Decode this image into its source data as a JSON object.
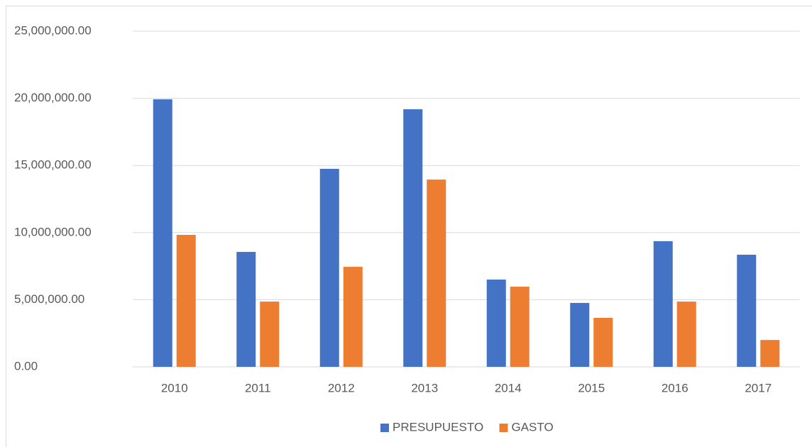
{
  "chart_data": {
    "type": "bar",
    "categories": [
      "2010",
      "2011",
      "2012",
      "2013",
      "2014",
      "2015",
      "2016",
      "2017"
    ],
    "series": [
      {
        "name": "PRESUPUESTO",
        "color": "#4472c4",
        "values": [
          19930000,
          8560000,
          14750000,
          19190000,
          6500000,
          4760000,
          9360000,
          8350000
        ]
      },
      {
        "name": "GASTO",
        "color": "#ed7d31",
        "values": [
          9830000,
          4860000,
          7450000,
          13950000,
          5970000,
          3650000,
          4860000,
          2000000
        ]
      }
    ],
    "ylim": [
      0,
      25000000
    ],
    "yticks": [
      {
        "value": 0,
        "label": "0.00"
      },
      {
        "value": 5000000,
        "label": "5,000,000.00"
      },
      {
        "value": 10000000,
        "label": "10,000,000.00"
      },
      {
        "value": 15000000,
        "label": "15,000,000.00"
      },
      {
        "value": 20000000,
        "label": "20,000,000.00"
      },
      {
        "value": 25000000,
        "label": "25,000,000.00"
      }
    ],
    "grid": true,
    "legend": "bottom"
  }
}
